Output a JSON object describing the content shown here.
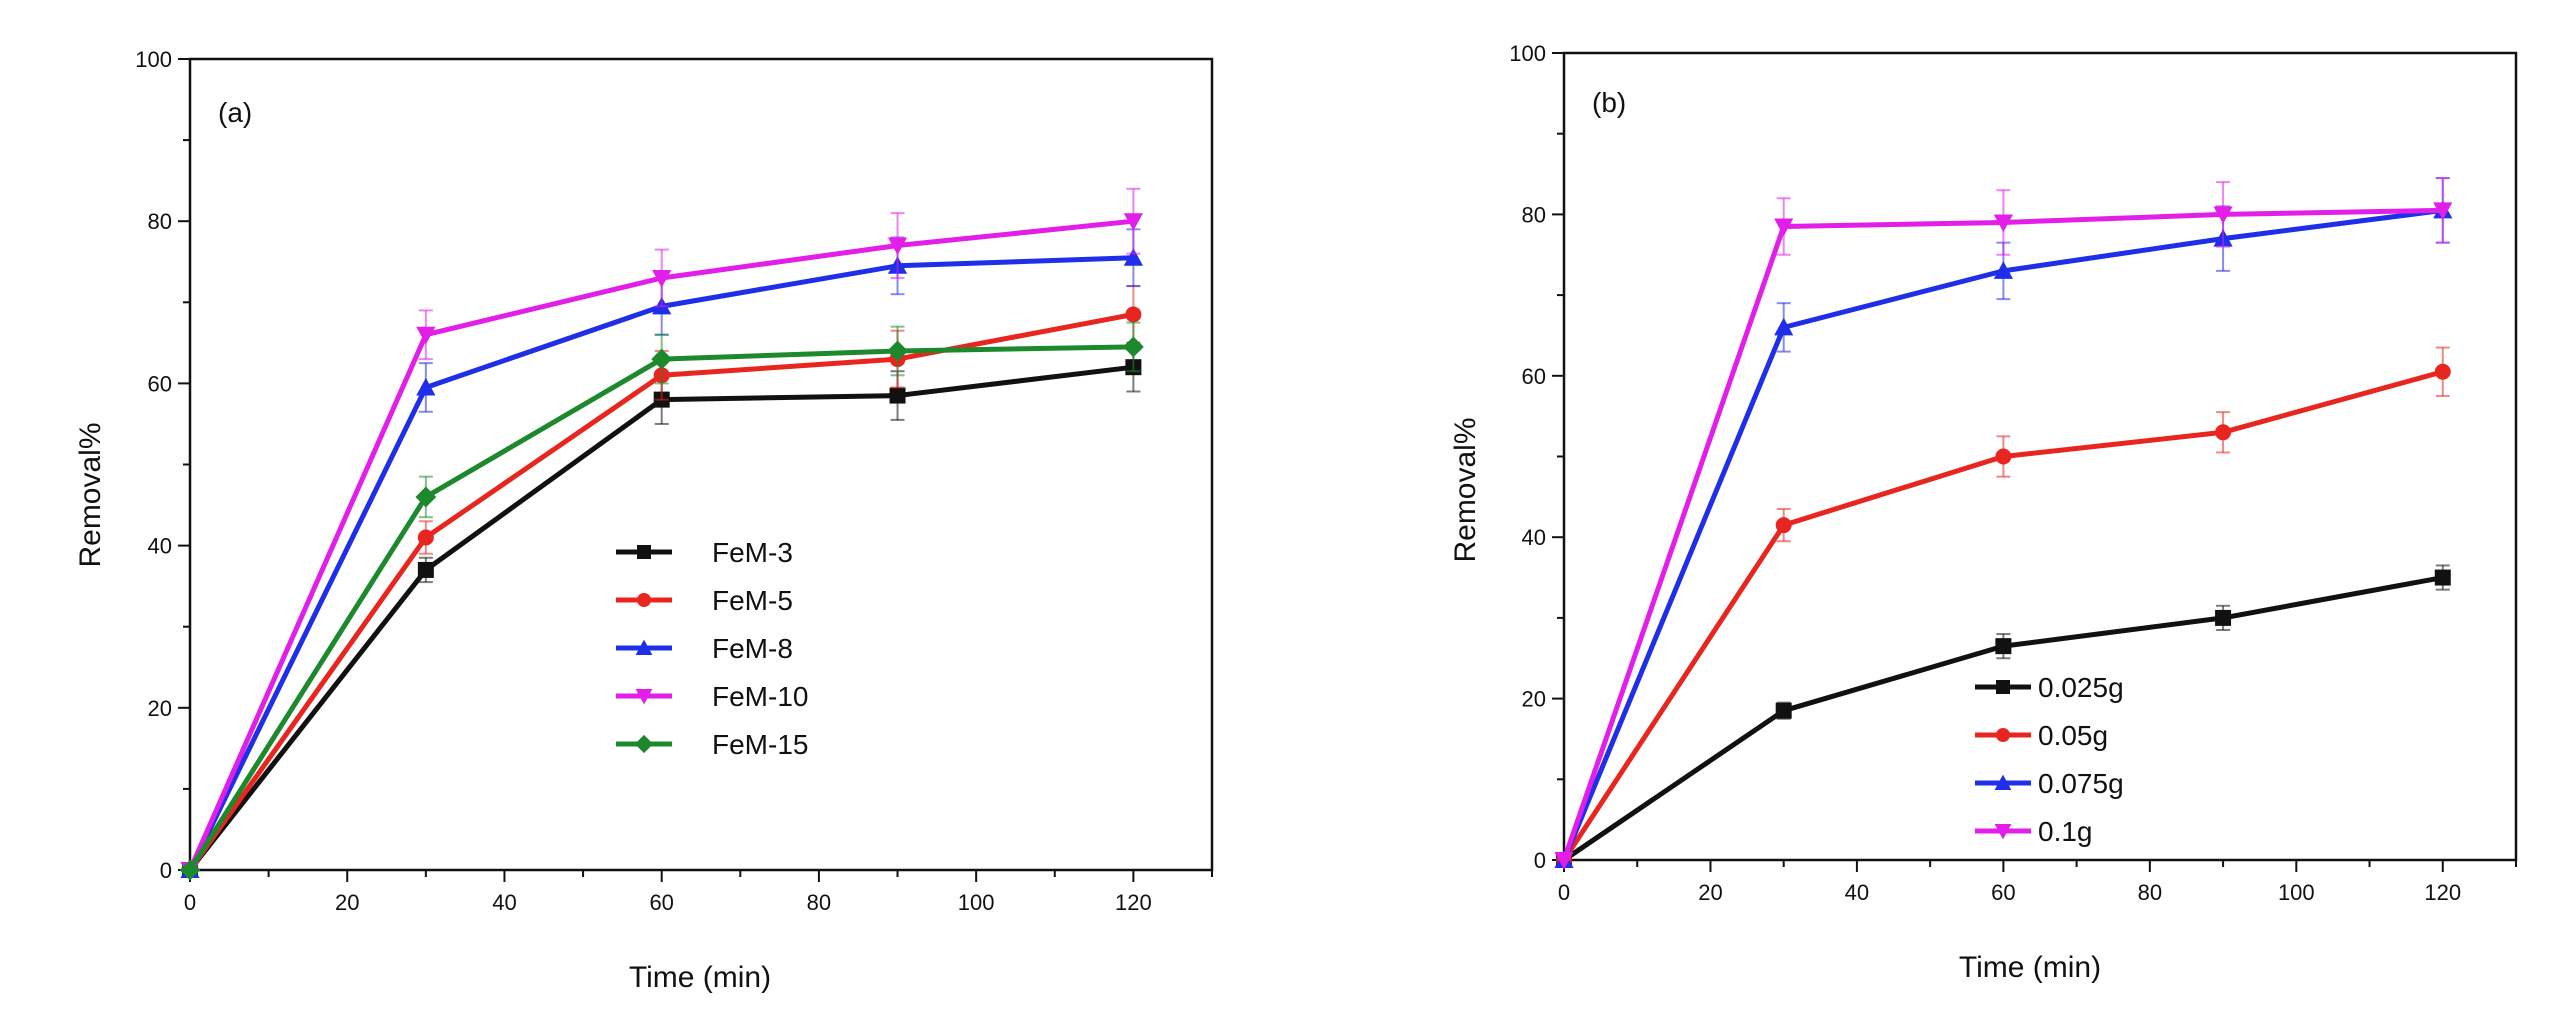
{
  "chart_data": [
    {
      "type": "line",
      "panel_label": "(a)",
      "xlabel": "Time (min)",
      "ylabel": "Removal%",
      "xlim": [
        0,
        130
      ],
      "ylim": [
        0,
        100
      ],
      "xticks": [
        0,
        20,
        40,
        60,
        80,
        100,
        120
      ],
      "yticks": [
        0,
        20,
        40,
        60,
        80,
        100
      ],
      "x": [
        0,
        30,
        60,
        90,
        120
      ],
      "legend_position": "center",
      "series": [
        {
          "name": "FeM-3",
          "color": "#111111",
          "marker": "square",
          "values": [
            0,
            37,
            58,
            58.5,
            62
          ],
          "errors": [
            0,
            1.5,
            3,
            3,
            3
          ]
        },
        {
          "name": "FeM-5",
          "color": "#e8261f",
          "marker": "circle",
          "values": [
            0,
            41,
            61,
            63,
            68.5
          ],
          "errors": [
            0,
            2,
            3,
            3.5,
            3.5
          ]
        },
        {
          "name": "FeM-8",
          "color": "#1f2ee8",
          "marker": "triangle-up",
          "values": [
            0,
            59.5,
            69.5,
            74.5,
            75.5
          ],
          "errors": [
            0,
            3,
            3.5,
            3.5,
            3.5
          ]
        },
        {
          "name": "FeM-10",
          "color": "#e21ee8",
          "marker": "triangle-down",
          "values": [
            0,
            66,
            73,
            77,
            80
          ],
          "errors": [
            0,
            3,
            3.5,
            4,
            4
          ]
        },
        {
          "name": "FeM-15",
          "color": "#1c8a2c",
          "marker": "diamond",
          "values": [
            0,
            46,
            63,
            64,
            64.5
          ],
          "errors": [
            0,
            2.5,
            3,
            3,
            3
          ]
        }
      ]
    },
    {
      "type": "line",
      "panel_label": "(b)",
      "xlabel": "Time (min)",
      "ylabel": "Removal%",
      "xlim": [
        0,
        130
      ],
      "ylim": [
        0,
        100
      ],
      "xticks": [
        0,
        20,
        40,
        60,
        80,
        100,
        120
      ],
      "yticks": [
        0,
        20,
        40,
        60,
        80,
        100
      ],
      "x": [
        0,
        30,
        60,
        90,
        120
      ],
      "legend_position": "bottom-center",
      "series": [
        {
          "name": "0.025g",
          "color": "#111111",
          "marker": "square",
          "values": [
            0,
            18.5,
            26.5,
            30,
            35
          ],
          "errors": [
            0,
            1,
            1.5,
            1.5,
            1.5
          ]
        },
        {
          "name": "0.05g",
          "color": "#e8261f",
          "marker": "circle",
          "values": [
            0,
            41.5,
            50,
            53,
            60.5
          ],
          "errors": [
            0,
            2,
            2.5,
            2.5,
            3
          ]
        },
        {
          "name": "0.075g",
          "color": "#1f2ee8",
          "marker": "triangle-up",
          "values": [
            0,
            66,
            73,
            77,
            80.5
          ],
          "errors": [
            0,
            3,
            3.5,
            4,
            4
          ]
        },
        {
          "name": "0.1g",
          "color": "#e21ee8",
          "marker": "triangle-down",
          "values": [
            0,
            78.5,
            79,
            80,
            80.5
          ],
          "errors": [
            0,
            3.5,
            4,
            4,
            4
          ]
        }
      ]
    }
  ]
}
